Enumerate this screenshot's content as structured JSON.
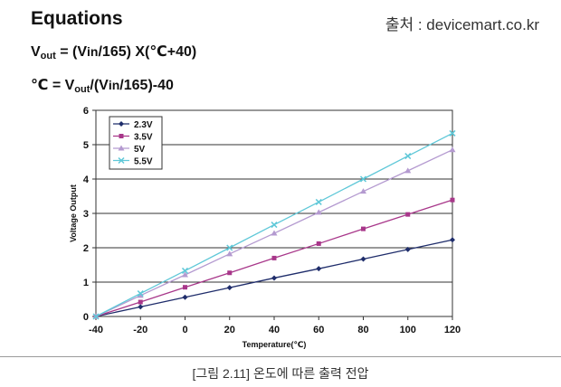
{
  "header": {
    "title": "Equations",
    "source": "출처 : devicemart.co.kr"
  },
  "equations": {
    "eq1": {
      "v": "V",
      "out": "out",
      "mid1": " = (V",
      "inn": "in",
      "rest": "/165) X(℃+40)"
    },
    "eq2": {
      "deg": "℃ = V",
      "out": "out",
      "mid": "/(V",
      "inn": "in",
      "rest": "/165)-40"
    }
  },
  "chart_data": {
    "type": "line",
    "xlabel": "Temperature(℃)",
    "ylabel": "Voltage Output",
    "x": [
      -40,
      -20,
      0,
      20,
      40,
      60,
      80,
      100,
      120
    ],
    "xlim": [
      -40,
      120
    ],
    "ylim": [
      0,
      6
    ],
    "xticks": [
      "-40",
      "-20",
      "0",
      "20",
      "40",
      "60",
      "80",
      "100",
      "120"
    ],
    "yticks": [
      "0",
      "1",
      "2",
      "3",
      "4",
      "5",
      "6"
    ],
    "grid": "horizontal",
    "legend": "top-left",
    "series": [
      {
        "name": "2.3V",
        "color": "#1f2d6b",
        "marker": "diamond",
        "values": [
          0,
          0.28,
          0.56,
          0.84,
          1.12,
          1.39,
          1.67,
          1.95,
          2.23
        ]
      },
      {
        "name": "3.5V",
        "color": "#a8378a",
        "marker": "square",
        "values": [
          0,
          0.42,
          0.85,
          1.27,
          1.7,
          2.12,
          2.55,
          2.97,
          3.39
        ]
      },
      {
        "name": "5V",
        "color": "#b49ad0",
        "marker": "triangle",
        "values": [
          0,
          0.61,
          1.21,
          1.82,
          2.42,
          3.03,
          3.64,
          4.24,
          4.85
        ]
      },
      {
        "name": "5.5V",
        "color": "#5fc8d8",
        "marker": "x",
        "values": [
          0,
          0.67,
          1.33,
          2.0,
          2.67,
          3.33,
          4.0,
          4.67,
          5.33
        ]
      }
    ]
  },
  "caption": "[그림 2.11] 온도에 따른 출력 전압"
}
